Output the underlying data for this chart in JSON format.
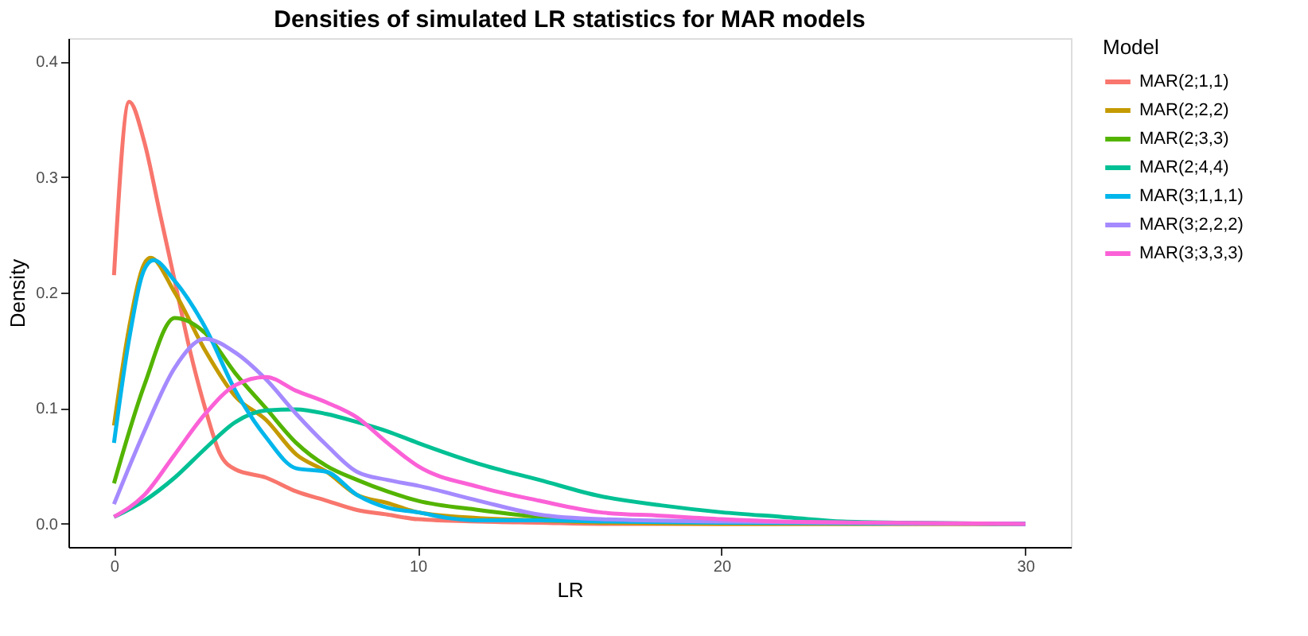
{
  "chart_data": {
    "type": "line",
    "title": "Densities of simulated LR statistics for MAR models",
    "xlabel": "LR",
    "ylabel": "Density",
    "legend_title": "Model",
    "legend": "right",
    "grid": false,
    "marker": "none",
    "line_style": "solid",
    "xlim": [
      -1.5,
      31.5
    ],
    "ylim": [
      -0.02,
      0.42
    ],
    "xticks": [
      0,
      10,
      20,
      30
    ],
    "yticks": [
      {
        "value": 0,
        "label": "0.0"
      },
      {
        "value": 0.1,
        "label": "0.1"
      },
      {
        "value": 0.2,
        "label": "0.2"
      },
      {
        "value": 0.3,
        "label": "0.3"
      },
      {
        "value": 0.4,
        "label": "0.4"
      }
    ],
    "series": [
      {
        "name": "MAR(2;1,1)",
        "color": "#f8766d",
        "x": [
          0,
          0.5,
          1,
          1.5,
          2,
          2.5,
          3,
          3.5,
          4,
          5,
          6,
          7,
          8,
          9,
          10,
          12,
          14,
          16,
          20,
          30
        ],
        "values": [
          0.215,
          0.365,
          0.33,
          0.27,
          0.21,
          0.15,
          0.1,
          0.06,
          0.047,
          0.04,
          0.028,
          0.02,
          0.012,
          0.008,
          0.004,
          0.002,
          0.001,
          0,
          0,
          0
        ]
      },
      {
        "name": "MAR(2;2,2)",
        "color": "#c49a00",
        "x": [
          0,
          0.5,
          1,
          1.2,
          2,
          3,
          4,
          5,
          6,
          7,
          8,
          9,
          10,
          12,
          14,
          16,
          20,
          30
        ],
        "values": [
          0.085,
          0.17,
          0.225,
          0.23,
          0.2,
          0.15,
          0.11,
          0.09,
          0.06,
          0.045,
          0.025,
          0.018,
          0.01,
          0.005,
          0.003,
          0.001,
          0,
          0
        ]
      },
      {
        "name": "MAR(2;3,3)",
        "color": "#53b400",
        "x": [
          0,
          1,
          2,
          3,
          4,
          5,
          6,
          7,
          8,
          9,
          10,
          12,
          14,
          16
        ],
        "values": [
          0.035,
          0.12,
          0.178,
          0.165,
          0.13,
          0.1,
          0.07,
          0.05,
          0.038,
          0.028,
          0.02,
          0.012,
          0.006,
          0.003
        ]
      },
      {
        "name": "MAR(2;4,4)",
        "color": "#00c094",
        "x": [
          0,
          1,
          2,
          3,
          4,
          5,
          6,
          7,
          8,
          9,
          10,
          12,
          14,
          16,
          18,
          20,
          22,
          24,
          26,
          30
        ],
        "values": [
          0.006,
          0.02,
          0.04,
          0.065,
          0.088,
          0.098,
          0.099,
          0.095,
          0.088,
          0.08,
          0.07,
          0.052,
          0.038,
          0.024,
          0.016,
          0.01,
          0.006,
          0.002,
          0.001,
          0
        ]
      },
      {
        "name": "MAR(3;1,1,1)",
        "color": "#00b6eb",
        "x": [
          0,
          0.5,
          1,
          1.3,
          2,
          3,
          4,
          5,
          6,
          7,
          8,
          9,
          10,
          11,
          12,
          14,
          16,
          20,
          30
        ],
        "values": [
          0.07,
          0.16,
          0.22,
          0.228,
          0.21,
          0.17,
          0.115,
          0.075,
          0.048,
          0.045,
          0.025,
          0.014,
          0.01,
          0.005,
          0.003,
          0.003,
          0.002,
          0.001,
          0
        ]
      },
      {
        "name": "MAR(3;2,2,2)",
        "color": "#a58aff",
        "x": [
          0,
          1,
          2,
          3,
          4,
          5,
          6,
          7,
          8,
          9,
          10,
          12,
          14,
          16,
          20,
          30
        ],
        "values": [
          0.017,
          0.08,
          0.135,
          0.16,
          0.148,
          0.125,
          0.095,
          0.068,
          0.045,
          0.038,
          0.033,
          0.02,
          0.008,
          0.004,
          0.002,
          0
        ]
      },
      {
        "name": "MAR(3;3,3,3)",
        "color": "#fb61d7",
        "x": [
          0,
          1,
          2,
          3,
          4,
          5,
          6,
          7,
          8,
          9,
          10,
          12,
          14,
          16,
          18,
          20,
          22,
          25,
          30
        ],
        "values": [
          0.006,
          0.025,
          0.06,
          0.095,
          0.12,
          0.127,
          0.115,
          0.105,
          0.092,
          0.07,
          0.05,
          0.032,
          0.02,
          0.01,
          0.007,
          0.004,
          0.002,
          0.001,
          0
        ]
      }
    ]
  }
}
